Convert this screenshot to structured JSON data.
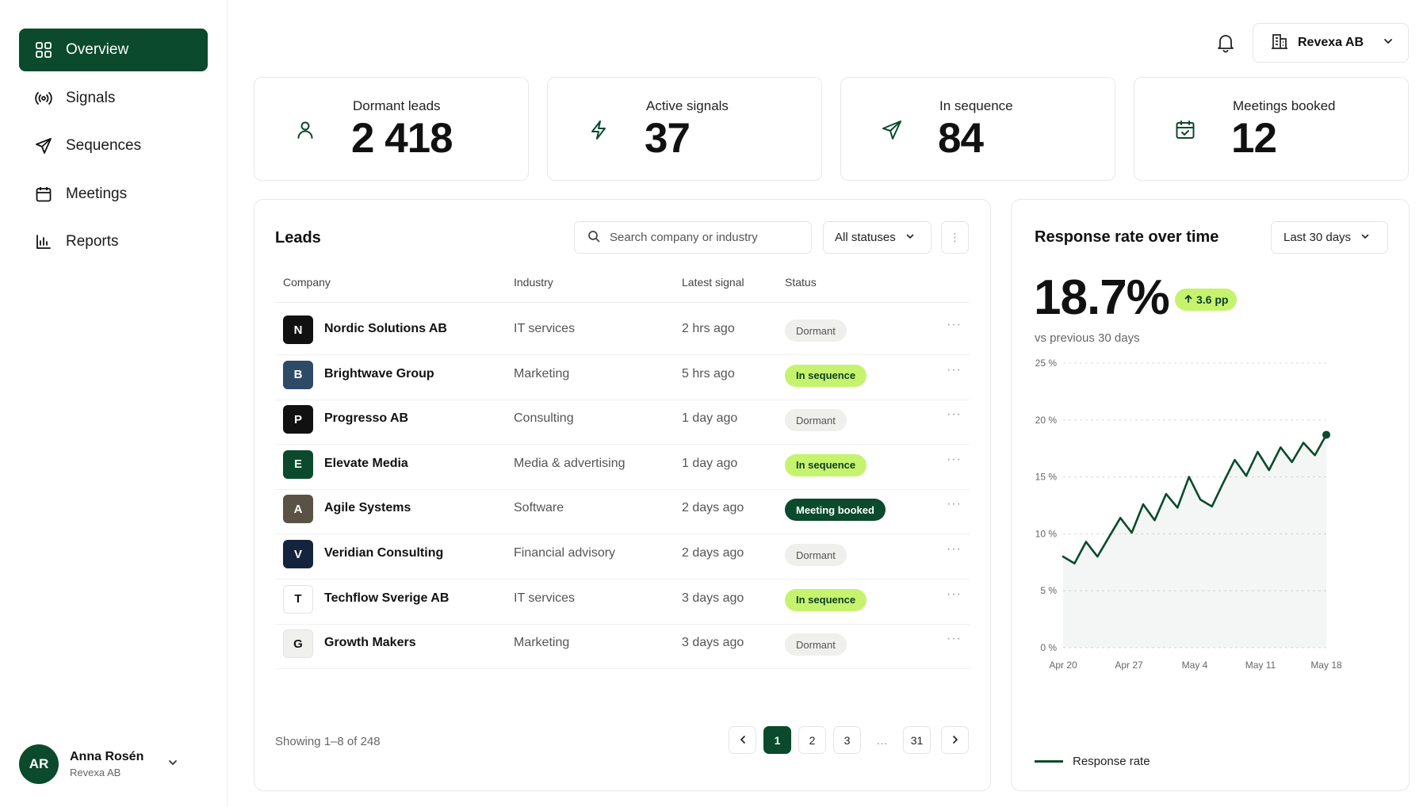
{
  "sidebar": {
    "items": [
      {
        "label": "Overview",
        "icon": "grid-icon",
        "active": true
      },
      {
        "label": "Signals",
        "icon": "broadcast-icon"
      },
      {
        "label": "Sequences",
        "icon": "send-icon"
      },
      {
        "label": "Meetings",
        "icon": "calendar-icon"
      },
      {
        "label": "Reports",
        "icon": "bar-chart-icon"
      }
    ],
    "user": {
      "initials": "AR",
      "name": "Anna Rosén",
      "org": "Revexa AB"
    }
  },
  "topbar": {
    "company": "Revexa AB"
  },
  "stats": [
    {
      "label": "Dormant leads",
      "value": "2 418",
      "icon": "user-icon"
    },
    {
      "label": "Active signals",
      "value": "37",
      "icon": "lightning-icon"
    },
    {
      "label": "In sequence",
      "value": "84",
      "icon": "send-icon"
    },
    {
      "label": "Meetings booked",
      "value": "12",
      "icon": "calendar-check-icon"
    }
  ],
  "leads": {
    "title": "Leads",
    "search_placeholder": "Search company or industry",
    "status_filter": "All statuses",
    "columns": [
      "Company",
      "Industry",
      "Latest signal",
      "Status"
    ],
    "rows": [
      {
        "initial": "N",
        "company": "Nordic Solutions AB",
        "industry": "IT services",
        "signal": "2 hrs ago",
        "status": "Dormant",
        "color": "#111111"
      },
      {
        "initial": "B",
        "company": "Brightwave Group",
        "industry": "Marketing",
        "signal": "5 hrs ago",
        "status": "In sequence",
        "color": "#2d4a66"
      },
      {
        "initial": "P",
        "company": "Progresso AB",
        "industry": "Consulting",
        "signal": "1 day ago",
        "status": "Dormant",
        "color": "#111111"
      },
      {
        "initial": "E",
        "company": "Elevate Media",
        "industry": "Media & advertising",
        "signal": "1 day ago",
        "status": "In sequence",
        "color": "#0b4a2c"
      },
      {
        "initial": "A",
        "company": "Agile Systems",
        "industry": "Software",
        "signal": "2 days ago",
        "status": "Meeting booked",
        "color": "#5a5245"
      },
      {
        "initial": "V",
        "company": "Veridian Consulting",
        "industry": "Financial advisory",
        "signal": "2 days ago",
        "status": "Dormant",
        "color": "#14243d"
      },
      {
        "initial": "T",
        "company": "Techflow Sverige AB",
        "industry": "IT services",
        "signal": "3 days ago",
        "status": "In sequence",
        "color": "#ffffff"
      },
      {
        "initial": "G",
        "company": "Growth Makers",
        "industry": "Marketing",
        "signal": "3 days ago",
        "status": "Dormant",
        "color": "#f0f0ee"
      }
    ],
    "showing": "Showing 1–8 of 248",
    "pages": [
      "1",
      "2",
      "3",
      "…",
      "31"
    ],
    "current_page": "1"
  },
  "chart_card": {
    "title": "Response rate over time",
    "range": "Last 30 days",
    "rate": "18.7%",
    "delta": "3.6 pp",
    "comparison": "vs previous 30 days"
  },
  "chart_data": {
    "type": "area",
    "series": [
      {
        "name": "Response rate",
        "values": [
          8.0,
          7.4,
          9.3,
          8.0,
          9.7,
          11.4,
          10.1,
          12.6,
          11.2,
          13.5,
          12.3,
          15.0,
          13.0,
          12.4,
          14.5,
          16.5,
          15.1,
          17.2,
          15.6,
          17.6,
          16.3,
          18.0,
          16.9,
          18.7
        ]
      }
    ],
    "x_ticks": [
      "Apr 20",
      "Apr 27",
      "May 4",
      "May 11",
      "May 18"
    ],
    "y_ticks": [
      "0 %",
      "5 %",
      "10 %",
      "15 %",
      "20 %",
      "25 %"
    ],
    "ylim": [
      0,
      25
    ],
    "grid": true,
    "legend": "bottom-left",
    "line_color": "#0b4a2c"
  }
}
